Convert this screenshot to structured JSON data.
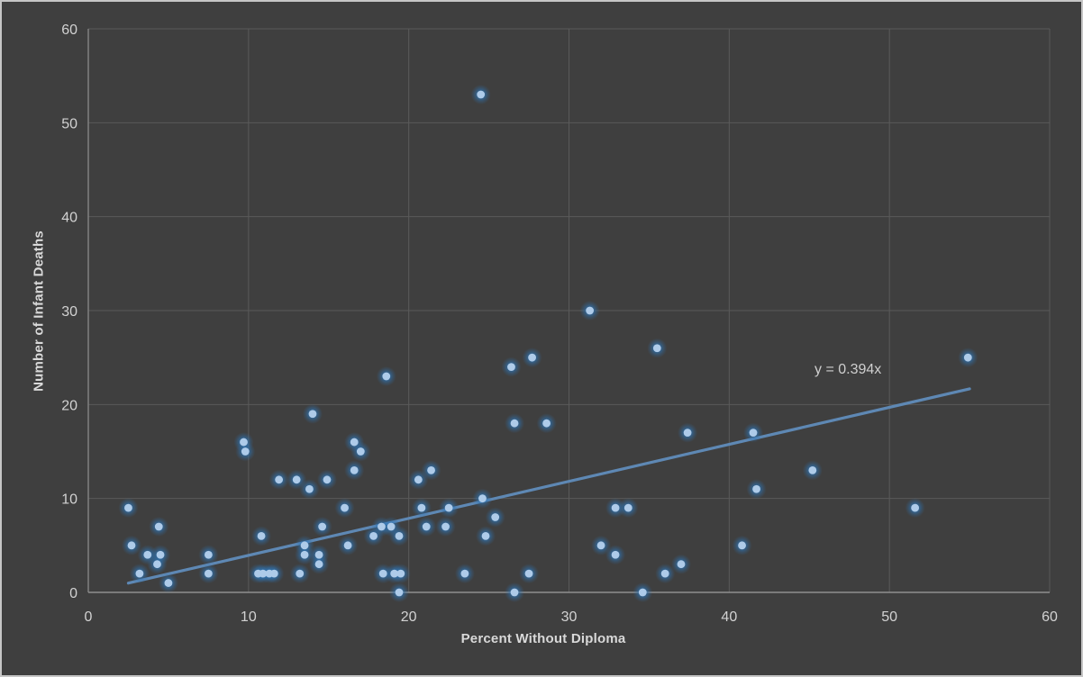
{
  "chart_data": {
    "type": "scatter",
    "title": "",
    "xlabel": "Percent Without Diploma",
    "ylabel": "Number of Infant Deaths",
    "xlim": [
      0,
      60
    ],
    "ylim": [
      0,
      60
    ],
    "xticks": [
      0,
      10,
      20,
      30,
      40,
      50,
      60
    ],
    "yticks": [
      0,
      10,
      20,
      30,
      40,
      50,
      60
    ],
    "grid": true,
    "legend": "none",
    "points": [
      [
        2.5,
        9
      ],
      [
        2.7,
        5
      ],
      [
        3.2,
        2
      ],
      [
        3.7,
        4
      ],
      [
        4.3,
        3
      ],
      [
        4.4,
        7
      ],
      [
        4.5,
        4
      ],
      [
        5.0,
        1
      ],
      [
        7.5,
        4
      ],
      [
        7.5,
        2
      ],
      [
        9.7,
        16
      ],
      [
        9.8,
        15
      ],
      [
        10.6,
        2
      ],
      [
        10.9,
        2
      ],
      [
        11.3,
        2
      ],
      [
        11.6,
        2
      ],
      [
        10.8,
        6
      ],
      [
        11.9,
        12
      ],
      [
        13.0,
        12
      ],
      [
        13.2,
        2
      ],
      [
        13.5,
        5
      ],
      [
        13.5,
        4
      ],
      [
        13.8,
        11
      ],
      [
        14.0,
        19
      ],
      [
        14.4,
        4
      ],
      [
        14.4,
        3
      ],
      [
        14.6,
        7
      ],
      [
        14.9,
        12
      ],
      [
        16.0,
        9
      ],
      [
        16.2,
        5
      ],
      [
        16.6,
        16
      ],
      [
        16.6,
        13
      ],
      [
        17.0,
        15
      ],
      [
        17.8,
        6
      ],
      [
        18.3,
        7
      ],
      [
        18.4,
        2
      ],
      [
        18.6,
        23
      ],
      [
        18.9,
        7
      ],
      [
        19.1,
        2
      ],
      [
        19.4,
        6
      ],
      [
        19.4,
        0
      ],
      [
        19.5,
        2
      ],
      [
        20.6,
        12
      ],
      [
        20.8,
        9
      ],
      [
        21.1,
        7
      ],
      [
        21.4,
        13
      ],
      [
        22.3,
        7
      ],
      [
        22.5,
        9
      ],
      [
        23.5,
        2
      ],
      [
        24.5,
        53
      ],
      [
        24.6,
        10
      ],
      [
        24.8,
        6
      ],
      [
        25.4,
        8
      ],
      [
        26.4,
        24
      ],
      [
        26.6,
        18
      ],
      [
        26.6,
        0
      ],
      [
        27.5,
        2
      ],
      [
        27.7,
        25
      ],
      [
        28.6,
        18
      ],
      [
        31.3,
        30
      ],
      [
        32.0,
        5
      ],
      [
        32.9,
        9
      ],
      [
        32.9,
        4
      ],
      [
        33.7,
        9
      ],
      [
        34.6,
        0
      ],
      [
        35.5,
        26
      ],
      [
        36.0,
        2
      ],
      [
        37.0,
        3
      ],
      [
        37.4,
        17
      ],
      [
        40.8,
        5
      ],
      [
        41.5,
        17
      ],
      [
        41.7,
        11
      ],
      [
        45.2,
        13
      ],
      [
        51.6,
        9
      ],
      [
        54.9,
        25
      ]
    ],
    "trendline": {
      "label": "y = 0.394x",
      "slope": 0.394,
      "intercept": 0,
      "x_start": 2.5,
      "x_end": 55
    }
  },
  "colors": {
    "background": "#3f3f3f",
    "gridline": "#5a5a5a",
    "axis_line_left": "#7d7d7d",
    "axis_line_bottom": "#8f8f8f",
    "tick_text": "#d2d2d2",
    "title_text": "#d9d9d9",
    "marker_core": "#aecbe9",
    "marker_glow": "#2e75b6",
    "trend_line": "#5e88b4"
  }
}
